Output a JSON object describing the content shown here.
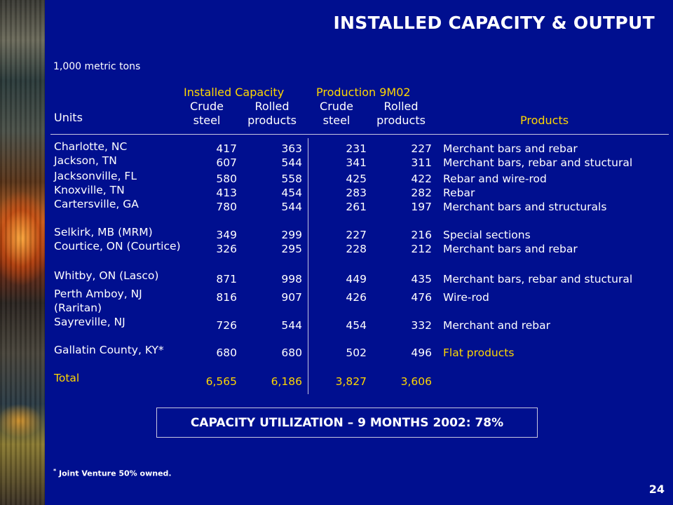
{
  "title": "INSTALLED CAPACITY & OUTPUT",
  "units_note": "1,000 metric tons",
  "headers": {
    "installed_capacity": "Installed Capacity",
    "production": "Production 9M02",
    "crude_line1": "Crude",
    "crude_line2": "steel",
    "rolled_line1": "Rolled",
    "rolled_line2": "products",
    "units": "Units",
    "products": "Products"
  },
  "rows": [
    {
      "location": "Charlotte, NC",
      "cap_crude": "417",
      "cap_rolled": "363",
      "prod_crude": "231",
      "prod_rolled": "227",
      "products": "Merchant bars and rebar"
    },
    {
      "location": "Jackson, TN",
      "cap_crude": "607",
      "cap_rolled": "544",
      "prod_crude": "341",
      "prod_rolled": "311",
      "products": "Merchant bars, rebar and stuctural"
    },
    {
      "location": "Jacksonville, FL",
      "cap_crude": "580",
      "cap_rolled": "558",
      "prod_crude": "425",
      "prod_rolled": "422",
      "products": "Rebar and wire-rod"
    },
    {
      "location": "Knoxville, TN",
      "cap_crude": "413",
      "cap_rolled": "454",
      "prod_crude": "283",
      "prod_rolled": "282",
      "products": "Rebar"
    },
    {
      "location": "Cartersville, GA",
      "cap_crude": "780",
      "cap_rolled": "544",
      "prod_crude": "261",
      "prod_rolled": "197",
      "products": "Merchant bars and structurals"
    },
    {
      "location": "Selkirk, MB (MRM)",
      "cap_crude": "349",
      "cap_rolled": "299",
      "prod_crude": "227",
      "prod_rolled": "216",
      "products": "Special sections"
    },
    {
      "location": "Courtice, ON (Courtice)",
      "cap_crude": "326",
      "cap_rolled": "295",
      "prod_crude": "228",
      "prod_rolled": "212",
      "products": "Merchant bars and rebar"
    },
    {
      "location": "Whitby, ON (Lasco)",
      "cap_crude": "871",
      "cap_rolled": "998",
      "prod_crude": "449",
      "prod_rolled": "435",
      "products": "Merchant bars, rebar and stuctural"
    },
    {
      "location": "Perth Amboy, NJ",
      "location_line2": "(Raritan)",
      "cap_crude": "816",
      "cap_rolled": "907",
      "prod_crude": "426",
      "prod_rolled": "476",
      "products": "Wire-rod"
    },
    {
      "location": "Sayreville, NJ",
      "cap_crude": "726",
      "cap_rolled": "544",
      "prod_crude": "454",
      "prod_rolled": "332",
      "products": "Merchant and rebar"
    },
    {
      "location": "Gallatin County, KY*",
      "cap_crude": "680",
      "cap_rolled": "680",
      "prod_crude": "502",
      "prod_rolled": "496",
      "products": "Flat products"
    }
  ],
  "total": {
    "label": "Total",
    "cap_crude": "6,565",
    "cap_rolled": "6,186",
    "prod_crude": "3,827",
    "prod_rolled": "3,606"
  },
  "utilization": "CAPACITY UTILIZATION – 9 MONTHS 2002:  78%",
  "footnote_mark": "*",
  "footnote": " Joint Venture 50% owned.",
  "page_number": "24"
}
